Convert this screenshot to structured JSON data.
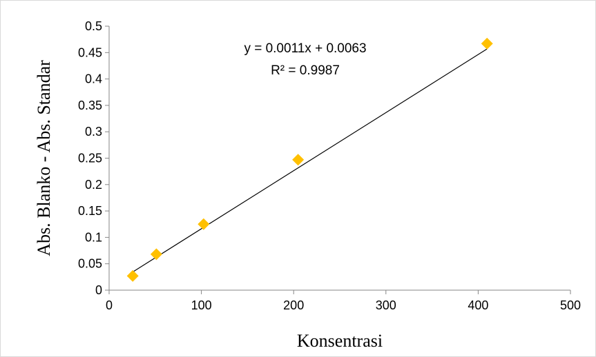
{
  "chart_data": {
    "type": "scatter",
    "xlabel": "Konsentrasi",
    "ylabel": "Abs. Blanko - Abs. Standar",
    "xlim": [
      0,
      500
    ],
    "ylim": [
      0,
      0.5
    ],
    "x_ticks": [
      "0",
      "100",
      "200",
      "300",
      "400",
      "500"
    ],
    "y_ticks": [
      "0",
      "0.05",
      "0.1",
      "0.15",
      "0.2",
      "0.25",
      "0.3",
      "0.35",
      "0.4",
      "0.45",
      "0.5"
    ],
    "grid": false,
    "legend": "none",
    "series": [
      {
        "color": "#FFC000",
        "marker": "diamond",
        "points": [
          {
            "x": 25.6,
            "y": 0.027
          },
          {
            "x": 51.2,
            "y": 0.068
          },
          {
            "x": 102.4,
            "y": 0.125
          },
          {
            "x": 204.8,
            "y": 0.247
          },
          {
            "x": 409.6,
            "y": 0.467
          }
        ]
      }
    ],
    "trendline": {
      "slope": 0.0011,
      "intercept": 0.0063,
      "x_range": [
        25.6,
        409.6
      ],
      "color": "#000000"
    },
    "annotations": {
      "equation": "y = 0.0011x + 0.0063",
      "r_squared": "R² = 0.9987"
    }
  }
}
